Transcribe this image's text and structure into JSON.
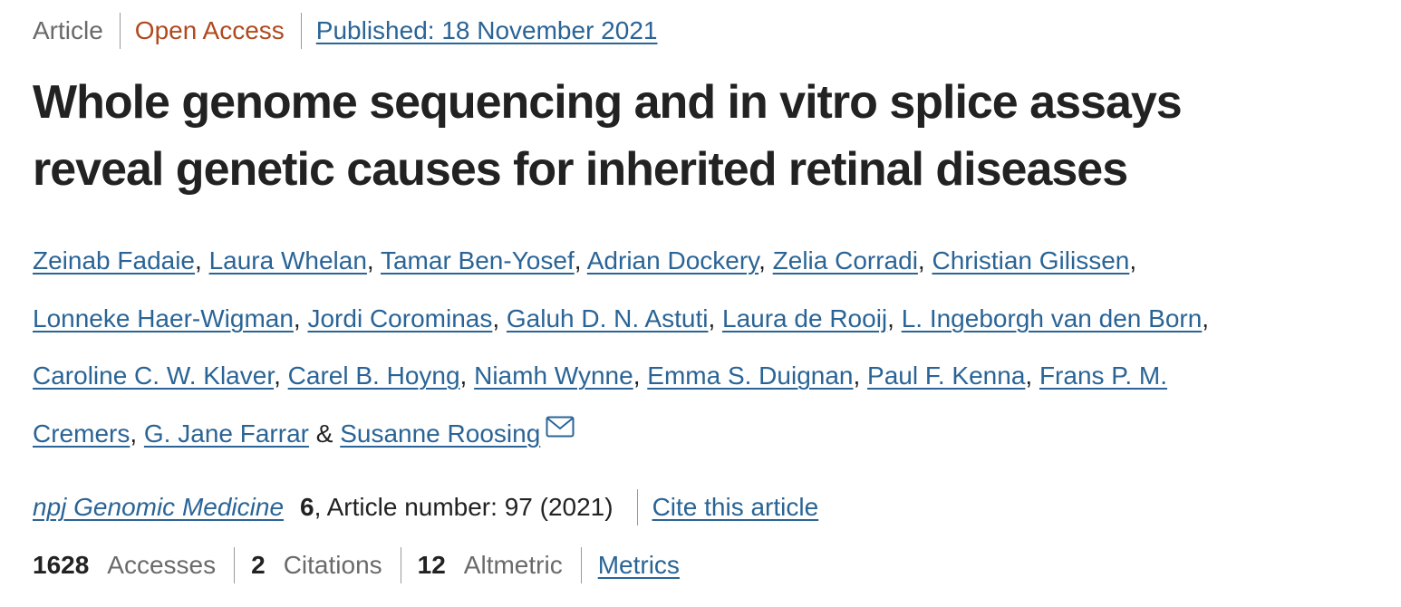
{
  "meta": {
    "article_type": "Article",
    "open_access": "Open Access",
    "published": "Published: 18 November 2021"
  },
  "title": {
    "line1": "Whole genome sequencing and in vitro splice assays",
    "line2": "reveal genetic causes for inherited retinal diseases"
  },
  "authors": {
    "a0": "Zeinab Fadaie",
    "a1": "Laura Whelan",
    "a2": "Tamar Ben-Yosef",
    "a3": "Adrian Dockery",
    "a4": "Zelia Corradi",
    "a5": "Christian Gilissen",
    "a6": "Lonneke Haer-Wigman",
    "a7": "Jordi Corominas",
    "a8": "Galuh D. N. Astuti",
    "a9": "Laura de Rooij",
    "a10": "L. Ingeborgh van den Born",
    "a11": "Caroline C. W. Klaver",
    "a12": "Carel B. Hoyng",
    "a13": "Niamh Wynne",
    "a14": "Emma S. Duignan",
    "a15": "Paul F. Kenna",
    "a16_part1": "Frans P. M.",
    "a16_part2": "Cremers",
    "a17": "G. Jane Farrar",
    "a18": "Susanne Roosing",
    "comma": ",",
    "ampersand": "&"
  },
  "citation": {
    "journal": "npj Genomic Medicine",
    "volume": "6",
    "article_number": ", Article number: 97 (2021)",
    "cite_link": "Cite this article"
  },
  "metrics": {
    "accesses_count": "1628",
    "accesses_label": "Accesses",
    "citations_count": "2",
    "citations_label": "Citations",
    "altmetric_count": "12",
    "altmetric_label": "Altmetric",
    "metrics_link": "Metrics"
  },
  "colors": {
    "link": "#2a6496",
    "open_access": "#b04a1e",
    "muted": "#6a6a6a",
    "text": "#222222"
  },
  "icons": {
    "corresponding_author": "mail-icon"
  }
}
